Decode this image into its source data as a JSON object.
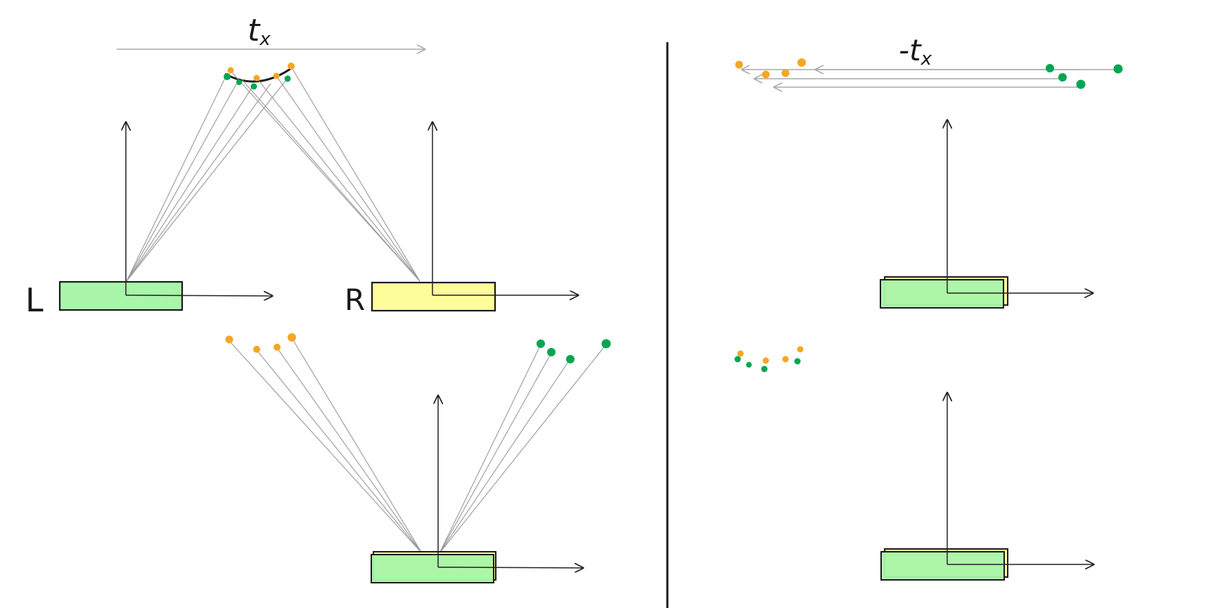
{
  "labels": {
    "translation": "t",
    "translation_subscript": "x",
    "neg_translation": "-t",
    "neg_translation_subscript": "x",
    "left_camera": "L",
    "right_camera": "R"
  },
  "colors": {
    "left_camera_fill": "#a9f5a9",
    "right_camera_fill": "#fdfd9a",
    "left_points": "#00a651",
    "right_points": "#f5a623",
    "axis_stroke": "#222222",
    "ray_stroke": "#999999",
    "divider_stroke": "#1a1a1a"
  }
}
